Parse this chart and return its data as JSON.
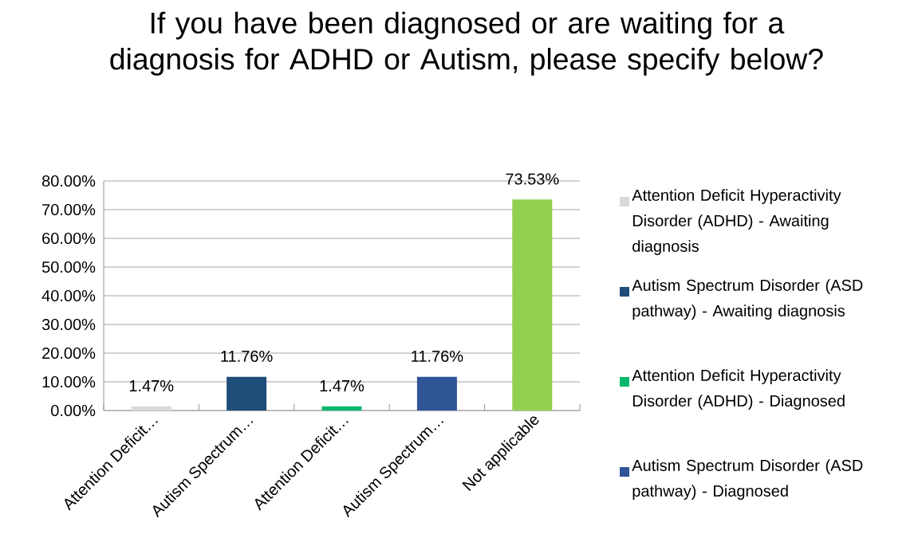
{
  "chart_data": {
    "type": "bar",
    "title": "If you have been diagnosed or are waiting for a diagnosis for ADHD or Autism, please specify below?",
    "categories": [
      "Attention Deficit…",
      "Autism Spectrum…",
      "Attention Deficit…",
      "Autism Spectrum…",
      "Not applicable"
    ],
    "series": [
      {
        "name": "Attention Deficit Hyperactivity Disorder (ADHD) - Awaiting diagnosis",
        "color": "#d9d9d9",
        "values": [
          1.47,
          null,
          null,
          null,
          null
        ],
        "value_labels": [
          "1.47%",
          null,
          null,
          null,
          null
        ]
      },
      {
        "name": "Autism Spectrum Disorder (ASD pathway) - Awaiting diagnosis",
        "color": "#1f4e79",
        "values": [
          null,
          11.76,
          null,
          null,
          null
        ],
        "value_labels": [
          null,
          "11.76%",
          null,
          null,
          null
        ]
      },
      {
        "name": "Attention Deficit Hyperactivity Disorder (ADHD) - Diagnosed",
        "color": "#00b96b",
        "values": [
          null,
          null,
          1.47,
          null,
          null
        ],
        "value_labels": [
          null,
          null,
          "1.47%",
          null,
          null
        ]
      },
      {
        "name": "Autism Spectrum Disorder (ASD pathway) - Diagnosed",
        "color": "#2f5597",
        "values": [
          null,
          null,
          null,
          11.76,
          null
        ],
        "value_labels": [
          null,
          null,
          null,
          "11.76%",
          null
        ]
      },
      {
        "color": "#92d050",
        "values": [
          null,
          null,
          null,
          null,
          73.53
        ],
        "value_labels": [
          null,
          null,
          null,
          null,
          "73.53%"
        ]
      }
    ],
    "ylim": [
      0,
      80
    ],
    "yticks": [
      {
        "value": 0,
        "label": "0.00%"
      },
      {
        "value": 10,
        "label": "10.00%"
      },
      {
        "value": 20,
        "label": "20.00%"
      },
      {
        "value": 30,
        "label": "30.00%"
      },
      {
        "value": 40,
        "label": "40.00%"
      },
      {
        "value": 50,
        "label": "50.00%"
      },
      {
        "value": 60,
        "label": "60.00%"
      },
      {
        "value": 70,
        "label": "70.00%"
      },
      {
        "value": 80,
        "label": "80.00%"
      }
    ],
    "grid": "y",
    "legend": "right"
  }
}
